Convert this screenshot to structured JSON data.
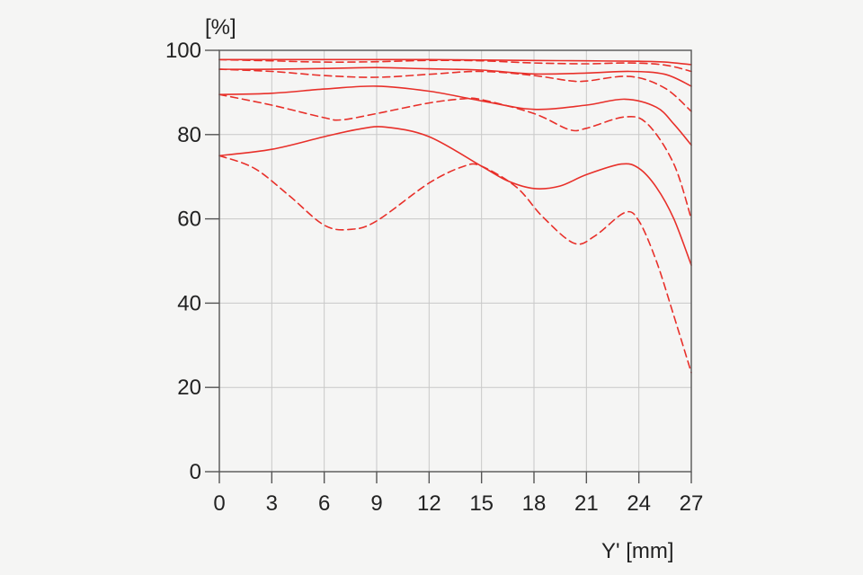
{
  "chart_data": {
    "type": "line",
    "title": "",
    "xlabel": "Y' [mm]",
    "ylabel": "[%]",
    "xlim": [
      0,
      27
    ],
    "ylim": [
      0,
      100
    ],
    "xticks": [
      0,
      3,
      6,
      9,
      12,
      15,
      18,
      21,
      24,
      27
    ],
    "yticks": [
      0,
      20,
      40,
      60,
      80,
      100
    ],
    "grid": true,
    "legend": "none",
    "series_color": "#e8302a",
    "series": [
      {
        "style": "solid",
        "points": [
          [
            0,
            97.8
          ],
          [
            3,
            97.8
          ],
          [
            6,
            97.8
          ],
          [
            9,
            97.8
          ],
          [
            12,
            97.8
          ],
          [
            15,
            97.7
          ],
          [
            18,
            97.6
          ],
          [
            21,
            97.5
          ],
          [
            24,
            97.4
          ],
          [
            25.5,
            97.2
          ],
          [
            27,
            96.6
          ]
        ]
      },
      {
        "style": "dashed",
        "points": [
          [
            0,
            97.8
          ],
          [
            3,
            97.5
          ],
          [
            6,
            97.2
          ],
          [
            9,
            97.3
          ],
          [
            12,
            97.6
          ],
          [
            15,
            97.5
          ],
          [
            18,
            97.0
          ],
          [
            21,
            96.8
          ],
          [
            23.5,
            97.0
          ],
          [
            25.5,
            96.5
          ],
          [
            27,
            95.0
          ]
        ]
      },
      {
        "style": "solid",
        "points": [
          [
            0,
            95.5
          ],
          [
            3,
            95.5
          ],
          [
            6,
            95.7
          ],
          [
            9,
            95.9
          ],
          [
            12,
            95.6
          ],
          [
            15,
            95.3
          ],
          [
            18,
            94.4
          ],
          [
            21,
            94.6
          ],
          [
            23.5,
            95.0
          ],
          [
            25.5,
            94.3
          ],
          [
            27,
            91.5
          ]
        ]
      },
      {
        "style": "dashed",
        "points": [
          [
            0,
            95.5
          ],
          [
            3,
            95.0
          ],
          [
            6,
            94.0
          ],
          [
            9,
            93.6
          ],
          [
            12,
            94.3
          ],
          [
            15,
            95.0
          ],
          [
            18,
            94.0
          ],
          [
            20,
            92.8
          ],
          [
            21,
            92.7
          ],
          [
            23.5,
            93.8
          ],
          [
            25.5,
            91.0
          ],
          [
            27,
            85.5
          ]
        ]
      },
      {
        "style": "solid",
        "points": [
          [
            0,
            89.5
          ],
          [
            3,
            89.8
          ],
          [
            6,
            90.8
          ],
          [
            9,
            91.5
          ],
          [
            12,
            90.3
          ],
          [
            15,
            88.0
          ],
          [
            18,
            86.0
          ],
          [
            21,
            87.0
          ],
          [
            23.2,
            88.4
          ],
          [
            25,
            86.5
          ],
          [
            26,
            82.5
          ],
          [
            27,
            77.5
          ]
        ]
      },
      {
        "style": "dashed",
        "points": [
          [
            0,
            89.5
          ],
          [
            3,
            87.0
          ],
          [
            6,
            84.0
          ],
          [
            7,
            83.5
          ],
          [
            9,
            85.0
          ],
          [
            12,
            87.5
          ],
          [
            14,
            88.5
          ],
          [
            15,
            88.3
          ],
          [
            18,
            85.0
          ],
          [
            20,
            81.2
          ],
          [
            21,
            81.5
          ],
          [
            23.2,
            84.2
          ],
          [
            24.5,
            82.5
          ],
          [
            26,
            73.0
          ],
          [
            27,
            60.0
          ]
        ]
      },
      {
        "style": "solid",
        "points": [
          [
            0,
            75.0
          ],
          [
            3,
            76.5
          ],
          [
            6,
            79.5
          ],
          [
            8,
            81.3
          ],
          [
            9.5,
            81.8
          ],
          [
            12,
            79.5
          ],
          [
            15,
            72.5
          ],
          [
            16.5,
            69.0
          ],
          [
            18,
            67.2
          ],
          [
            19.5,
            67.8
          ],
          [
            21,
            70.5
          ],
          [
            23,
            73.0
          ],
          [
            24,
            72.0
          ],
          [
            25,
            67.5
          ],
          [
            26,
            60.0
          ],
          [
            27,
            49.0
          ]
        ]
      },
      {
        "style": "dashed",
        "points": [
          [
            0,
            75.0
          ],
          [
            2,
            72.0
          ],
          [
            4,
            65.5
          ],
          [
            6,
            58.5
          ],
          [
            7.5,
            57.5
          ],
          [
            9,
            59.5
          ],
          [
            12,
            68.5
          ],
          [
            14,
            72.5
          ],
          [
            15,
            72.5
          ],
          [
            17,
            67.5
          ],
          [
            18.5,
            60.5
          ],
          [
            20.3,
            54.2
          ],
          [
            21.5,
            56.0
          ],
          [
            23.2,
            61.5
          ],
          [
            24,
            59.5
          ],
          [
            25,
            50.0
          ],
          [
            26,
            37.0
          ],
          [
            27,
            23.5
          ]
        ]
      }
    ]
  }
}
